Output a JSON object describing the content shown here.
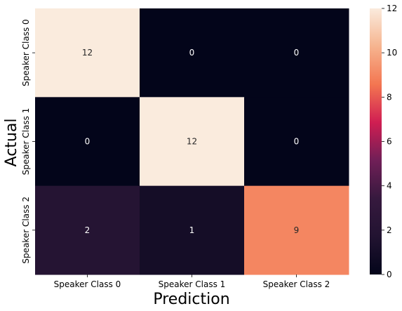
{
  "chart_data": {
    "type": "heatmap",
    "title": "",
    "xlabel": "Prediction",
    "ylabel": "Actual",
    "x_categories": [
      "Speaker Class 0",
      "Speaker Class 1",
      "Speaker Class 2"
    ],
    "y_categories": [
      "Speaker Class 0",
      "Speaker Class 1",
      "Speaker Class 2"
    ],
    "values": [
      [
        12,
        0,
        0
      ],
      [
        0,
        12,
        0
      ],
      [
        2,
        1,
        9
      ]
    ],
    "colorbar": {
      "min": 0,
      "max": 12,
      "ticks": [
        0,
        2,
        4,
        6,
        8,
        10,
        12
      ],
      "colormap": "rocket",
      "colors": [
        "#03051a",
        "#221331",
        "#36193e",
        "#701f57",
        "#d01e52",
        "#f37651",
        "#f6b48f",
        "#faebdd"
      ]
    },
    "annotation_text_light": "#ffffff",
    "annotation_text_dark": "#262626"
  }
}
